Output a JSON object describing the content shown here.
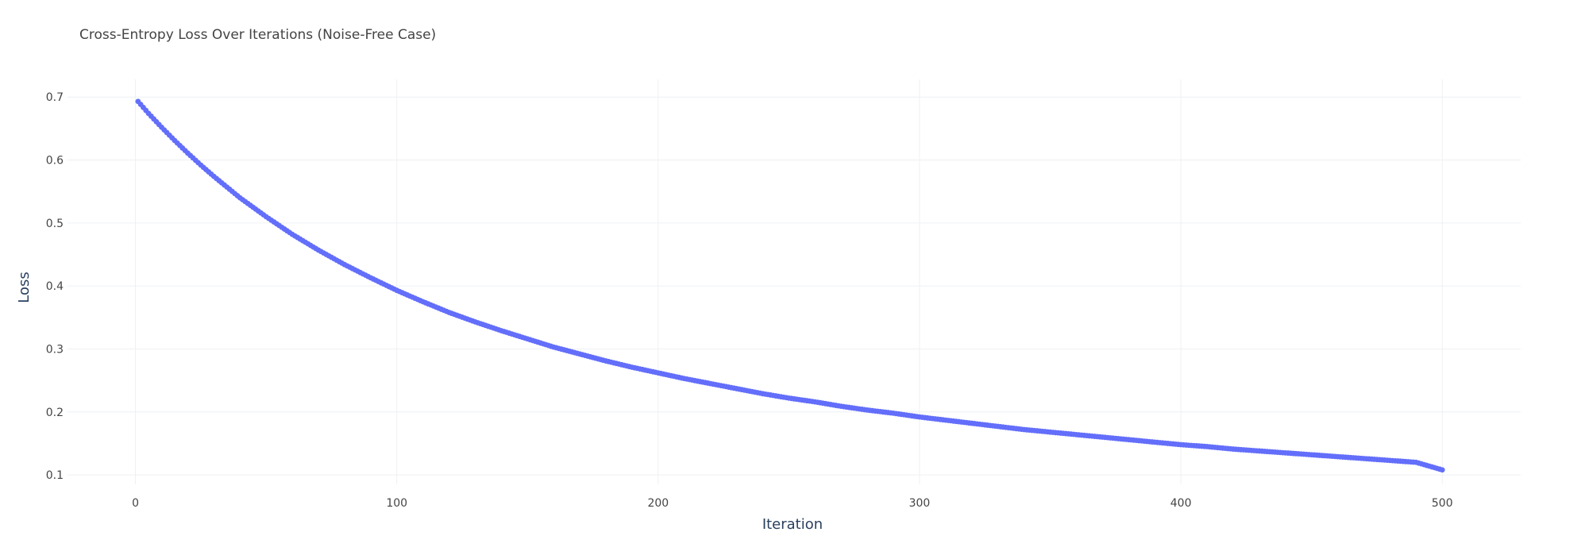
{
  "chart_data": {
    "type": "scatter",
    "title": "Cross-Entropy Loss Over Iterations (Noise-Free Case)",
    "xlabel": "Iteration",
    "ylabel": "Loss",
    "xlim": [
      -26,
      530
    ],
    "ylim": [
      0.085,
      0.728
    ],
    "x_ticks": [
      0,
      100,
      200,
      300,
      400,
      500
    ],
    "x_tick_labels": [
      "0",
      "100",
      "200",
      "300",
      "400",
      "500"
    ],
    "y_ticks": [
      0.1,
      0.2,
      0.3,
      0.4,
      0.5,
      0.6,
      0.7
    ],
    "y_tick_labels": [
      "0.1",
      "0.2",
      "0.3",
      "0.4",
      "0.5",
      "0.6",
      "0.7"
    ],
    "grid": true,
    "legend": "none",
    "mode": "markers",
    "marker_color": "#636efa",
    "series": [
      {
        "x": [
          1,
          5,
          10,
          15,
          20,
          25,
          30,
          40,
          50,
          60,
          70,
          80,
          90,
          100,
          110,
          120,
          130,
          140,
          150,
          160,
          170,
          180,
          190,
          200,
          210,
          220,
          230,
          240,
          250,
          260,
          270,
          280,
          290,
          300,
          310,
          320,
          330,
          340,
          350,
          360,
          370,
          380,
          390,
          400,
          410,
          420,
          430,
          440,
          450,
          460,
          470,
          480,
          490,
          500
        ],
        "values": [
          0.693,
          0.674,
          0.652,
          0.631,
          0.611,
          0.592,
          0.574,
          0.54,
          0.51,
          0.482,
          0.457,
          0.434,
          0.413,
          0.393,
          0.375,
          0.358,
          0.343,
          0.329,
          0.316,
          0.303,
          0.292,
          0.281,
          0.271,
          0.262,
          0.253,
          0.245,
          0.237,
          0.229,
          0.222,
          0.216,
          0.209,
          0.203,
          0.198,
          0.192,
          0.187,
          0.182,
          0.177,
          0.172,
          0.168,
          0.164,
          0.16,
          0.156,
          0.152,
          0.148,
          0.145,
          0.141,
          0.138,
          0.135,
          0.132,
          0.129,
          0.126,
          0.123,
          0.12,
          0.108
        ]
      }
    ]
  }
}
